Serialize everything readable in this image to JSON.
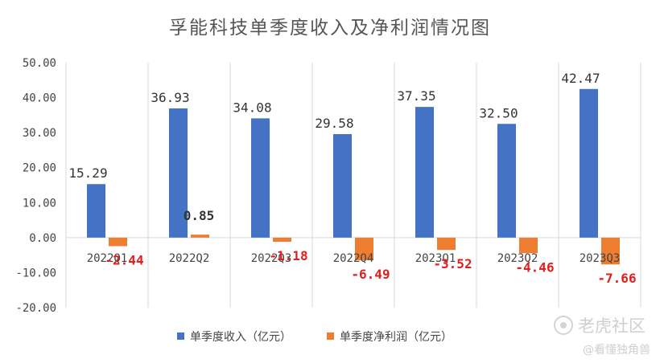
{
  "chart_data": {
    "type": "bar",
    "title": "孚能科技单季度收入及净利润情况图",
    "categories": [
      "2022Q1",
      "2022Q2",
      "2022Q3",
      "2022Q4",
      "2023Q1",
      "2023Q2",
      "2023Q3"
    ],
    "series": [
      {
        "name": "单季度收入（亿元）",
        "color": "#4472c4",
        "values": [
          15.29,
          36.93,
          34.08,
          29.58,
          37.35,
          32.5,
          42.47
        ],
        "labels": [
          "15.29",
          "36.93",
          "34.08",
          "29.58",
          "37.35",
          "32.50",
          "42.47"
        ]
      },
      {
        "name": "单季度净利润（亿元）",
        "color": "#ed7d31",
        "values": [
          -2.44,
          0.85,
          -1.18,
          -6.49,
          -3.52,
          -4.46,
          -7.66
        ],
        "labels": [
          "-2.44",
          "0.85",
          "-1.18",
          "-6.49",
          "-3.52",
          "-4.46",
          "-7.66"
        ]
      }
    ],
    "yticks": [
      "50.00",
      "40.00",
      "30.00",
      "20.00",
      "10.00",
      "0.00",
      "-10.00",
      "-20.00"
    ],
    "ylim": [
      -20,
      50
    ],
    "grid": "vertical category separators",
    "legend": "bottom-center",
    "label_colors": {
      "negative": "#e01e1e",
      "positive": "#333333"
    }
  },
  "watermark": {
    "brand": "老虎社区",
    "handle": "@看懂独角兽"
  }
}
